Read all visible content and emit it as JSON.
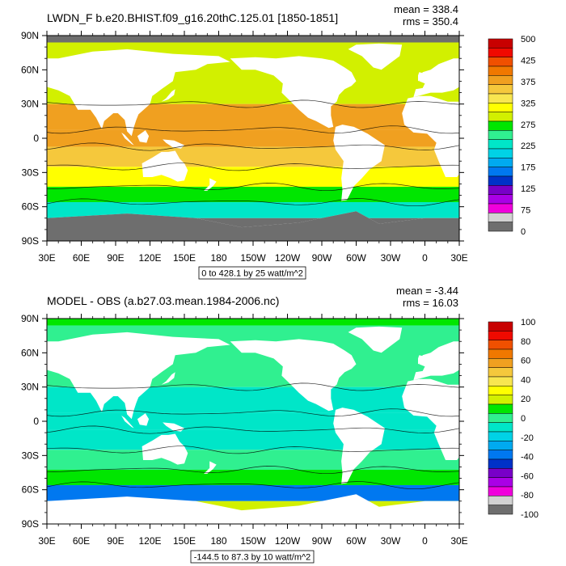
{
  "chart_data": [
    {
      "type": "heatmap",
      "title": "LWDN_F b.e20.BHIST.f09_g16.20thC.125.01 [1850-1851]",
      "stats": {
        "mean": "mean = 338.4",
        "rms": "rms = 350.4"
      },
      "xlabel": "",
      "ylabel": "",
      "x_ticks": [
        "30E",
        "60E",
        "90E",
        "120E",
        "150E",
        "180",
        "150W",
        "120W",
        "90W",
        "60W",
        "30W",
        "0",
        "30E"
      ],
      "y_ticks": [
        "90N",
        "60N",
        "30N",
        "0",
        "30S",
        "60S",
        "90S"
      ],
      "xlim": [
        30,
        390
      ],
      "ylim": [
        -90,
        90
      ],
      "grid": false,
      "legend": "right",
      "contour_info": "0 to 428.1 by 25 watt/m^2",
      "colorbar": {
        "labels": [
          "500",
          "425",
          "375",
          "325",
          "275",
          "225",
          "175",
          "125",
          "75",
          "0"
        ],
        "colors": [
          "#ffffff",
          "#c80000",
          "#f00a00",
          "#f05000",
          "#f07800",
          "#f0a020",
          "#f5c83c",
          "#f8e650",
          "#ffff00",
          "#d2f000",
          "#00e600",
          "#30f090",
          "#00e6c8",
          "#00d2e6",
          "#00aaf0",
          "#0078f0",
          "#0032c8",
          "#7800c8",
          "#aa00e6",
          "#f000dc",
          "#d2d2d2",
          "#6e6e6e"
        ]
      },
      "regions": [
        {
          "lat": 45,
          "val": 300
        },
        {
          "lat": 15,
          "val": 390
        },
        {
          "lat": 0,
          "val": 395
        },
        {
          "lat": -15,
          "val": 380
        },
        {
          "lat": -35,
          "val": 330
        },
        {
          "lat": -50,
          "val": 285
        },
        {
          "lat": -62,
          "val": 220
        }
      ]
    },
    {
      "type": "heatmap",
      "title": "MODEL - OBS (a.b27.03.mean.1984-2006.nc)",
      "stats": {
        "mean": "mean = -3.44",
        "rms": "rms = 16.03"
      },
      "xlabel": "",
      "ylabel": "",
      "x_ticks": [
        "30E",
        "60E",
        "90E",
        "120E",
        "150E",
        "180",
        "150W",
        "120W",
        "90W",
        "60W",
        "30W",
        "0",
        "30E"
      ],
      "y_ticks": [
        "90N",
        "60N",
        "30N",
        "0",
        "30S",
        "60S",
        "90S"
      ],
      "xlim": [
        30,
        390
      ],
      "ylim": [
        -90,
        90
      ],
      "grid": false,
      "legend": "right",
      "contour_info": "-144.5 to 87.3 by 10 watt/m^2",
      "colorbar": {
        "labels": [
          "100",
          "80",
          "60",
          "40",
          "20",
          "0",
          "-20",
          "-40",
          "-60",
          "-80",
          "-100"
        ],
        "colors": [
          "#ffffff",
          "#c80000",
          "#f00a00",
          "#f05000",
          "#f07800",
          "#f0a020",
          "#f5c83c",
          "#f8e650",
          "#ffff00",
          "#d2f000",
          "#00e600",
          "#30f090",
          "#00e6c8",
          "#00d2e6",
          "#00aaf0",
          "#0078f0",
          "#0032c8",
          "#7800c8",
          "#aa00e6",
          "#f000dc",
          "#d2d2d2",
          "#6e6e6e"
        ]
      },
      "regions": [
        {
          "lat": 45,
          "val": 5
        },
        {
          "lat": 15,
          "val": -5
        },
        {
          "lat": 0,
          "val": -8
        },
        {
          "lat": -15,
          "val": -5
        },
        {
          "lat": -35,
          "val": 5
        },
        {
          "lat": -50,
          "val": 10
        },
        {
          "lat": -62,
          "val": -40
        }
      ]
    }
  ]
}
